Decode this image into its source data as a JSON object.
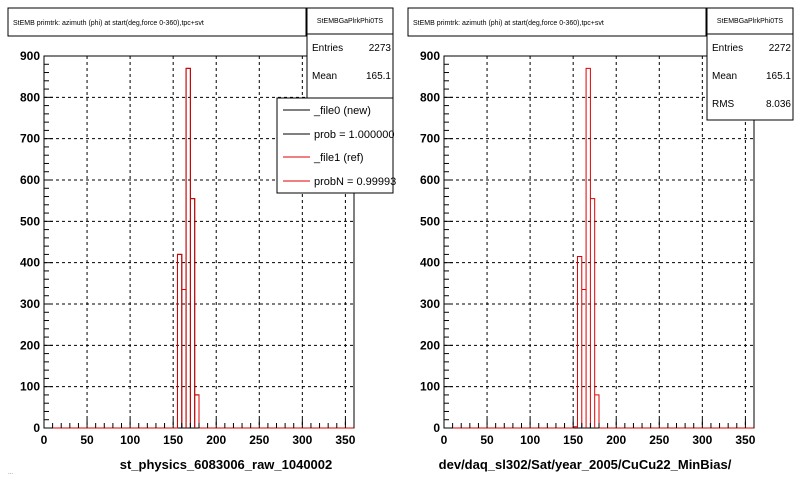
{
  "footer_text": "...",
  "colors": {
    "new": "#000000",
    "ref": "#dd0000",
    "grid": "#000000",
    "frame": "#000000"
  },
  "chart_data": [
    {
      "type": "bar",
      "title": "StEMB primtrk: azimuth (phi) at start(deg,force 0-360),tpc+svt",
      "xlabel": "st_physics_6083006_raw_1040002",
      "ylabel": "",
      "xlim": [
        0,
        360
      ],
      "ylim": [
        0,
        900
      ],
      "xticks": [
        0,
        50,
        100,
        150,
        200,
        250,
        300,
        350
      ],
      "yticks": [
        0,
        100,
        200,
        300,
        400,
        500,
        600,
        700,
        800,
        900
      ],
      "grid": true,
      "bin_width": 5,
      "stats": {
        "title": "StEMBGaPlrkPhi0TS",
        "rows": [
          {
            "label": "Entries",
            "value": "2273"
          },
          {
            "label": "Mean",
            "value": "165.1"
          }
        ]
      },
      "legend": {
        "position": "top-right",
        "entries": [
          {
            "label": "_file0 (new)",
            "color_key": "new"
          },
          {
            "label": "prob = 1.000000",
            "color_key": "new"
          },
          {
            "label": "_file1 (ref)",
            "color_key": "ref"
          },
          {
            "label": "probN = 0.99993",
            "color_key": "ref"
          }
        ]
      },
      "series": [
        {
          "name": "_file0 (new)",
          "color_key": "new",
          "x": [
            155,
            160,
            165,
            170,
            175
          ],
          "values": [
            420,
            335,
            870,
            555,
            80
          ]
        },
        {
          "name": "_file1 (ref)",
          "color_key": "ref",
          "x": [
            155,
            160,
            165,
            170,
            175
          ],
          "values": [
            420,
            335,
            870,
            555,
            80
          ]
        }
      ]
    },
    {
      "type": "bar",
      "title": "StEMB primtrk: azimuth (phi) at start(deg,force 0-360),tpc+svt",
      "xlabel": "dev/daq_sl302/Sat/year_2005/CuCu22_MinBias/",
      "ylabel": "",
      "xlim": [
        0,
        360
      ],
      "ylim": [
        0,
        900
      ],
      "xticks": [
        0,
        50,
        100,
        150,
        200,
        250,
        300,
        350
      ],
      "yticks": [
        0,
        100,
        200,
        300,
        400,
        500,
        600,
        700,
        800,
        900
      ],
      "grid": true,
      "bin_width": 5,
      "stats": {
        "title": "StEMBGaPlrkPhi0TS",
        "rows": [
          {
            "label": "Entries",
            "value": "2272"
          },
          {
            "label": "Mean",
            "value": "165.1"
          },
          {
            "label": "RMS",
            "value": "8.036"
          }
        ]
      },
      "legend": null,
      "series": [
        {
          "name": "",
          "color_key": "ref",
          "x": [
            150,
            155,
            160,
            165,
            170,
            175
          ],
          "values": [
            3,
            415,
            335,
            870,
            555,
            80
          ]
        }
      ]
    }
  ]
}
